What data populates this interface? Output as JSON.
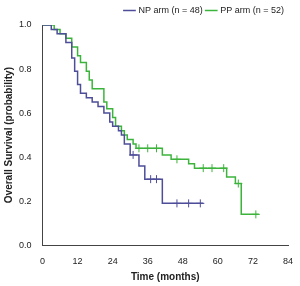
{
  "chart_data": {
    "type": "line",
    "x_label": "Time (months)",
    "y_label": "Overall Survival (probability)",
    "xlim": [
      0,
      84
    ],
    "xticks": [
      0,
      12,
      24,
      36,
      48,
      60,
      72,
      84
    ],
    "ylim": [
      0,
      1
    ],
    "yticks": [
      {
        "value": 0,
        "label": "0.0"
      },
      0.2,
      0.4,
      0.6,
      0.8,
      {
        "value": 1,
        "label": "1.0"
      }
    ],
    "grid": false,
    "legend": "top-right",
    "series": [
      {
        "name": "NP arm (n = 48)",
        "color": "#4d4d99",
        "line_style": "step",
        "marker": "cross",
        "x": [
          0,
          3,
          5,
          8,
          10,
          11,
          12,
          13,
          15,
          17,
          19,
          21,
          23,
          24,
          26,
          27,
          28,
          30,
          33,
          35,
          41,
          55
        ],
        "values": [
          1,
          0.98,
          0.96,
          0.92,
          0.85,
          0.79,
          0.73,
          0.69,
          0.67,
          0.65,
          0.63,
          0.6,
          0.56,
          0.54,
          0.52,
          0.5,
          0.46,
          0.41,
          0.36,
          0.3,
          0.19,
          0.19
        ],
        "censor_x": [
          31,
          37,
          39,
          46,
          50,
          54
        ],
        "censor_y": [
          0.41,
          0.3,
          0.3,
          0.19,
          0.19,
          0.19
        ]
      },
      {
        "name": "PP arm (n = 52)",
        "color": "#3cb43c",
        "line_style": "step",
        "marker": "cross",
        "x": [
          0,
          4,
          6,
          8,
          10,
          12,
          13,
          15,
          16,
          17,
          21,
          22,
          24,
          25,
          27,
          28,
          29,
          31,
          32,
          41,
          44,
          50,
          52,
          63,
          66,
          68,
          74
        ],
        "values": [
          1,
          0.98,
          0.96,
          0.94,
          0.9,
          0.86,
          0.83,
          0.79,
          0.75,
          0.71,
          0.65,
          0.62,
          0.58,
          0.54,
          0.52,
          0.5,
          0.48,
          0.46,
          0.44,
          0.41,
          0.39,
          0.37,
          0.35,
          0.31,
          0.28,
          0.14,
          0.14
        ],
        "censor_x": [
          33,
          36,
          39,
          46,
          55,
          58,
          62,
          67,
          73
        ],
        "censor_y": [
          0.44,
          0.44,
          0.44,
          0.39,
          0.35,
          0.35,
          0.35,
          0.28,
          0.14
        ]
      }
    ]
  }
}
